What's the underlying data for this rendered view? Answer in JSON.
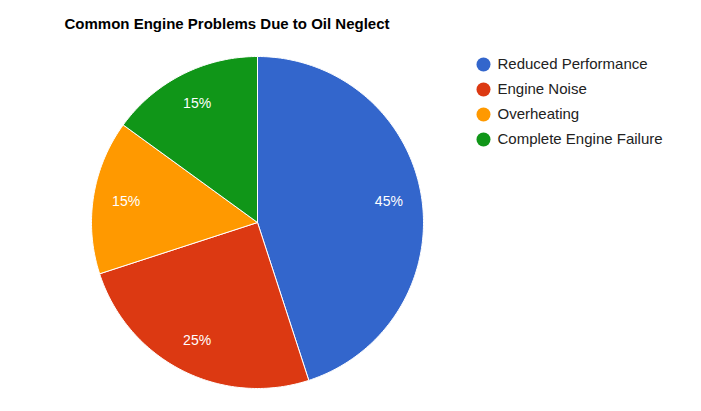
{
  "chart_data": {
    "type": "pie",
    "title": "Common Engine Problems Due to Oil Neglect",
    "categories": [
      "Reduced Performance",
      "Engine Noise",
      "Overheating",
      "Complete Engine Failure"
    ],
    "values": [
      45,
      25,
      15,
      15
    ],
    "value_labels": [
      "45%",
      "25%",
      "15%",
      "15%"
    ],
    "colors": [
      "#3366cc",
      "#dc3912",
      "#ff9900",
      "#109618"
    ],
    "data_labels": true,
    "legend": "right"
  }
}
